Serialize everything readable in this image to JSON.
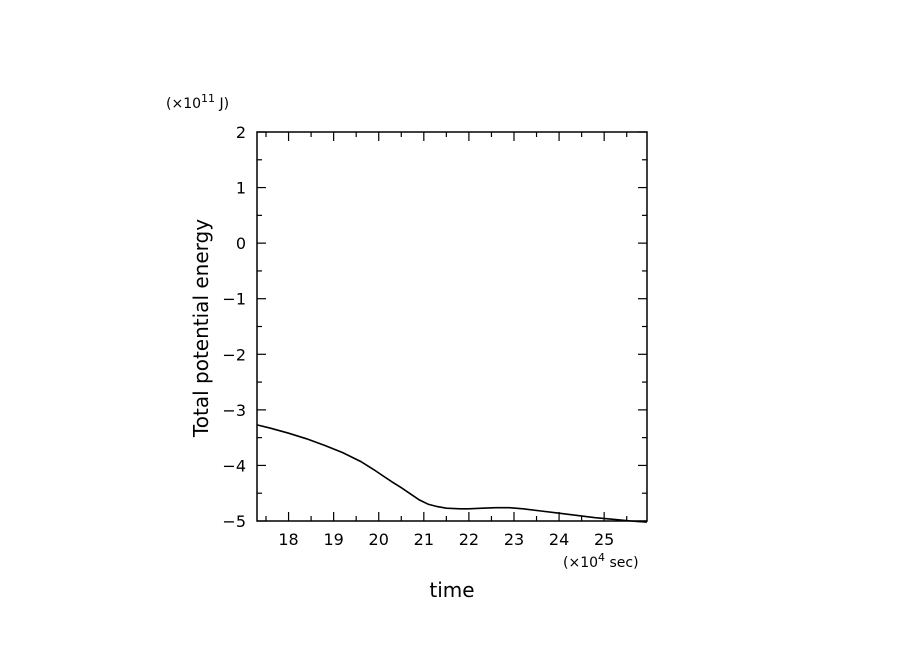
{
  "chart_data": {
    "type": "line",
    "xlabel": "time",
    "ylabel": "Total potential energy",
    "x_unit_label": {
      "prefix": "(×10",
      "exponent": "4",
      "suffix": " sec)"
    },
    "y_unit_label": {
      "prefix": "(×10",
      "exponent": "11",
      "suffix": " J)"
    },
    "xlim": [
      17.3,
      25.95
    ],
    "ylim": [
      -5,
      2
    ],
    "x_ticks": [
      18,
      19,
      20,
      21,
      22,
      23,
      24,
      25
    ],
    "y_ticks": [
      2,
      1,
      0,
      -1,
      -2,
      -3,
      -4,
      -5
    ],
    "grid": false,
    "series": [
      {
        "color": "#000000",
        "x": [
          17.3,
          17.6,
          18.0,
          18.4,
          18.8,
          19.2,
          19.6,
          19.9,
          20.1,
          20.3,
          20.5,
          20.7,
          20.9,
          21.1,
          21.3,
          21.5,
          21.8,
          22.0,
          22.3,
          22.6,
          22.9,
          23.2,
          23.6,
          24.0,
          24.4,
          24.8,
          25.2,
          25.6,
          25.95
        ],
        "y": [
          -3.27,
          -3.33,
          -3.42,
          -3.52,
          -3.64,
          -3.77,
          -3.93,
          -4.08,
          -4.19,
          -4.3,
          -4.4,
          -4.51,
          -4.62,
          -4.7,
          -4.74,
          -4.77,
          -4.78,
          -4.78,
          -4.77,
          -4.76,
          -4.76,
          -4.78,
          -4.82,
          -4.86,
          -4.9,
          -4.94,
          -4.97,
          -5.0,
          -5.02
        ]
      }
    ]
  }
}
